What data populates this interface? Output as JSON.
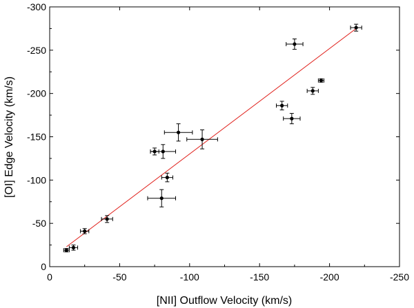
{
  "chart_data": {
    "type": "scatter",
    "title": "",
    "xlabel": "[NII] Outflow Velocity  (km/s)",
    "ylabel": "[OI] Edge Velocity  (km/s)",
    "xlim": [
      0,
      -250
    ],
    "ylim": [
      0,
      -300
    ],
    "xticks": [
      0,
      -50,
      -100,
      -150,
      -200,
      -250
    ],
    "yticks": [
      0,
      -50,
      -100,
      -150,
      -200,
      -250,
      -300
    ],
    "colors": {
      "points": "#000000",
      "fit_line": "#e0201b",
      "axes": "#000000"
    },
    "points": [
      {
        "x": -12,
        "y": -19,
        "xerr": 2,
        "yerr": 2
      },
      {
        "x": -17,
        "y": -22,
        "xerr": 3,
        "yerr": 3
      },
      {
        "x": -25,
        "y": -41,
        "xerr": 3,
        "yerr": 3
      },
      {
        "x": -41,
        "y": -55,
        "xerr": 4,
        "yerr": 4
      },
      {
        "x": -75,
        "y": -133,
        "xerr": 3,
        "yerr": 4
      },
      {
        "x": -80,
        "y": -79,
        "xerr": 10,
        "yerr": 10
      },
      {
        "x": -81,
        "y": -133,
        "xerr": 9,
        "yerr": 8
      },
      {
        "x": -84,
        "y": -103,
        "xerr": 4,
        "yerr": 5
      },
      {
        "x": -92,
        "y": -155,
        "xerr": 10,
        "yerr": 10
      },
      {
        "x": -109,
        "y": -147,
        "xerr": 11,
        "yerr": 11
      },
      {
        "x": -166,
        "y": -186,
        "xerr": 4,
        "yerr": 5
      },
      {
        "x": -173,
        "y": -171,
        "xerr": 6,
        "yerr": 6
      },
      {
        "x": -175,
        "y": -257,
        "xerr": 6,
        "yerr": 6
      },
      {
        "x": -188,
        "y": -203,
        "xerr": 4,
        "yerr": 4
      },
      {
        "x": -194,
        "y": -215,
        "xerr": 2,
        "yerr": 2
      },
      {
        "x": -219,
        "y": -276,
        "xerr": 4,
        "yerr": 4
      }
    ],
    "fit_line": {
      "x": [
        -12,
        -219
      ],
      "y": [
        -23,
        -275
      ]
    }
  }
}
